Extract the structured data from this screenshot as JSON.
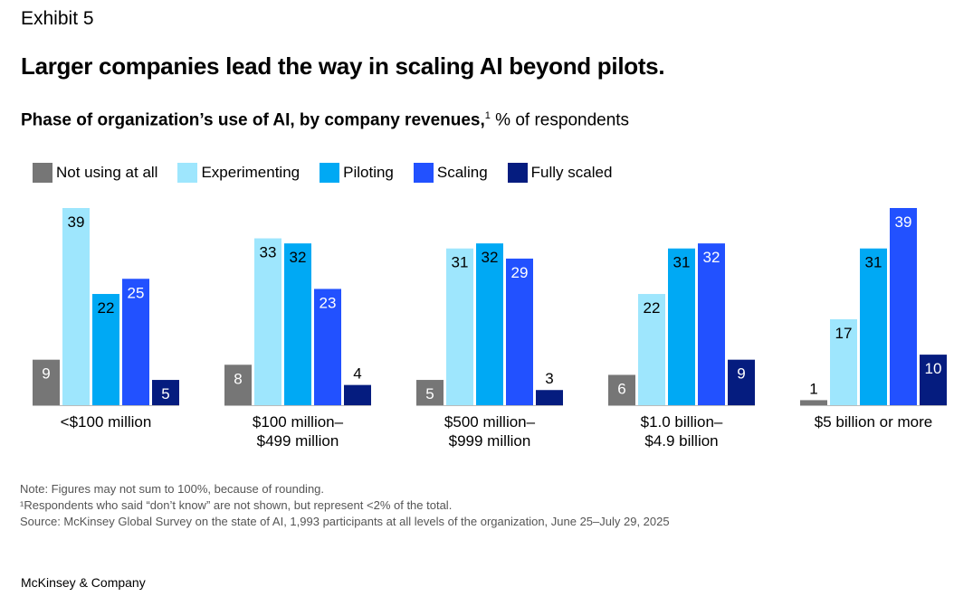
{
  "exhibit": "Exhibit 5",
  "title": "Larger companies lead the way in scaling AI beyond pilots.",
  "subtitle_bold": "Phase of organization’s use of AI, by company revenues,",
  "subtitle_sup": "1",
  "subtitle_rest": " % of respondents",
  "notes": [
    "Note: Figures may not sum to 100%, because of rounding.",
    "¹Respondents who said “don’t know” are not shown, but represent <2% of the total.",
    " Source: McKinsey Global Survey on the state of AI, 1,993 participants at all levels of the organization, June 25–July 29, 2025"
  ],
  "brand": "McKinsey & Company",
  "chart_data": {
    "type": "bar",
    "title": "Phase of organization’s use of AI, by company revenues",
    "ylabel": "% of respondents",
    "ylim": [
      0,
      40
    ],
    "legend_placement": "top-left",
    "categories": [
      [
        "<$100 million"
      ],
      [
        "$100 million–",
        "$499 million"
      ],
      [
        "$500 million–",
        "$999 million"
      ],
      [
        "$1.0 billion–",
        "$4.9 billion"
      ],
      [
        "$5 billion or more"
      ]
    ],
    "series": [
      {
        "name": "Not using at all",
        "color": "#767676",
        "label_color": "#ffffff",
        "values": [
          9,
          8,
          5,
          6,
          1
        ]
      },
      {
        "name": "Experimenting",
        "color": "#9ee6fd",
        "label_color": "#000000",
        "values": [
          39,
          33,
          31,
          22,
          17
        ]
      },
      {
        "name": "Piloting",
        "color": "#00a9f4",
        "label_color": "#000000",
        "values": [
          22,
          32,
          32,
          31,
          31
        ]
      },
      {
        "name": "Scaling",
        "color": "#2251ff",
        "label_color": "#ffffff",
        "values": [
          25,
          23,
          29,
          32,
          39
        ]
      },
      {
        "name": "Fully scaled",
        "color": "#051c7f",
        "label_color": "#ffffff",
        "values": [
          5,
          4,
          3,
          9,
          10
        ]
      }
    ]
  }
}
